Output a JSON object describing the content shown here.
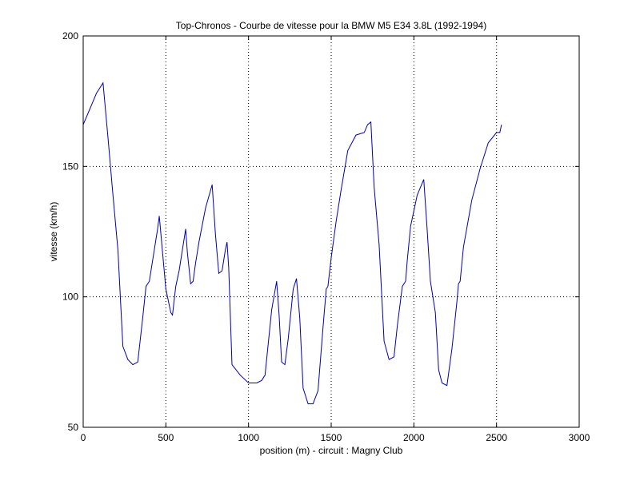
{
  "chart_data": {
    "type": "line",
    "title": "Top-Chronos - Courbe de vitesse pour la BMW M5 E34 3.8L (1992-1994)",
    "xlabel": "position (m) - circuit : Magny Club",
    "ylabel": "vitesse (km/h)",
    "xlim": [
      0,
      3000
    ],
    "ylim": [
      50,
      200
    ],
    "xticks": [
      0,
      500,
      1000,
      1500,
      2000,
      2500,
      3000
    ],
    "yticks": [
      50,
      100,
      150,
      200
    ],
    "xtick_labels": [
      "0",
      "500",
      "1000",
      "1500",
      "2000",
      "2500",
      "3000"
    ],
    "ytick_labels": [
      "50",
      "100",
      "150",
      "200"
    ],
    "grid": true,
    "line_color": "#0000b4",
    "series": [
      {
        "x": [
          0,
          40,
          80,
          120,
          150,
          180,
          210,
          240,
          270,
          300,
          330,
          360,
          380,
          400,
          420,
          450,
          460,
          480,
          500,
          530,
          540,
          560,
          580,
          620,
          630,
          650,
          665,
          680,
          700,
          740,
          780,
          800,
          820,
          840,
          860,
          870,
          880,
          900,
          950,
          1000,
          1050,
          1080,
          1100,
          1140,
          1170,
          1185,
          1200,
          1220,
          1240,
          1270,
          1290,
          1310,
          1330,
          1360,
          1390,
          1420,
          1450,
          1470,
          1480,
          1500,
          1530,
          1560,
          1600,
          1650,
          1700,
          1720,
          1740,
          1760,
          1790,
          1820,
          1850,
          1880,
          1900,
          1930,
          1950,
          1960,
          1980,
          2020,
          2060,
          2080,
          2100,
          2130,
          2150,
          2170,
          2200,
          2230,
          2260,
          2270,
          2280,
          2300,
          2350,
          2400,
          2450,
          2500,
          2520,
          2530
        ],
        "y": [
          166,
          172,
          178,
          182,
          161,
          139,
          118,
          81,
          76,
          74,
          75,
          92,
          104,
          106,
          114,
          126,
          131,
          117,
          103,
          94,
          93,
          104,
          110,
          126,
          117,
          105,
          106,
          113,
          121,
          134,
          143,
          124,
          109,
          110,
          118,
          121,
          111,
          74,
          70,
          67,
          67,
          68,
          70,
          95,
          106,
          93,
          75,
          74,
          84,
          103,
          107,
          92,
          65,
          59,
          59,
          64,
          88,
          103,
          104,
          115,
          129,
          141,
          156,
          162,
          163,
          166,
          167,
          142,
          120,
          83,
          76,
          77,
          89,
          104,
          106,
          114,
          127,
          139,
          145,
          126,
          106,
          94,
          72,
          67,
          66,
          80,
          98,
          105,
          106,
          119,
          137,
          149,
          159,
          163,
          163,
          166
        ]
      }
    ]
  }
}
